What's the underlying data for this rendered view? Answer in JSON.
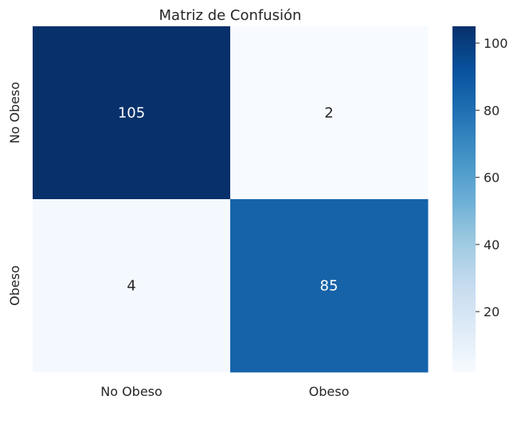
{
  "chart_data": {
    "type": "heatmap",
    "title": "Matriz de Confusión",
    "x_categories": [
      "No Obeso",
      "Obeso"
    ],
    "y_categories": [
      "No Obeso",
      "Obeso"
    ],
    "values": [
      [
        105,
        2
      ],
      [
        4,
        85
      ]
    ],
    "xlabel": "",
    "ylabel": "",
    "annotations": true,
    "colormap": "Blues",
    "color_range": [
      2,
      105
    ],
    "colorbar": {
      "ticks": [
        20,
        40,
        60,
        80,
        100
      ]
    }
  }
}
